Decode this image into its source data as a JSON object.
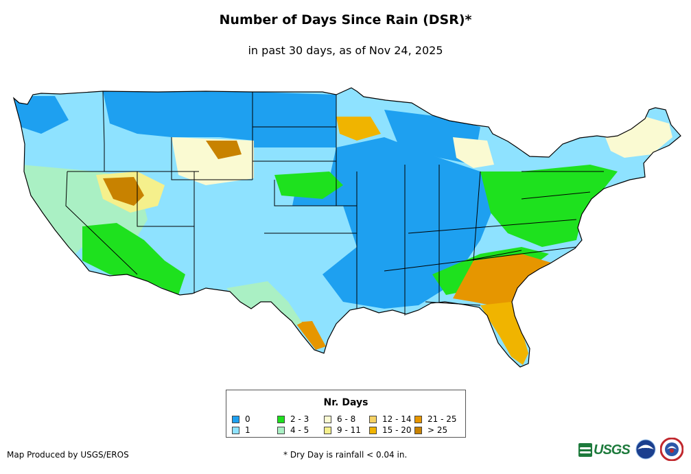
{
  "title": "Number of Days Since Rain (DSR)*",
  "subtitle": "in past 30 days, as of Nov 24, 2025",
  "legend": {
    "title": "Nr. Days",
    "items": [
      {
        "label": "0",
        "color": "#1ea0f0"
      },
      {
        "label": "1",
        "color": "#8ee2ff"
      },
      {
        "label": "2 - 3",
        "color": "#1ee11e"
      },
      {
        "label": "4 - 5",
        "color": "#aaf0c4"
      },
      {
        "label": "6 - 8",
        "color": "#fafad2"
      },
      {
        "label": "9 - 11",
        "color": "#f5f08c"
      },
      {
        "label": "12 - 14",
        "color": "#f5d264"
      },
      {
        "label": "15 - 20",
        "color": "#f0b400"
      },
      {
        "label": "21 - 25",
        "color": "#e69600"
      },
      {
        "label": "> 25",
        "color": "#c88200"
      }
    ]
  },
  "footer": {
    "credit": "Map Produced by USGS/EROS",
    "note": "* Dry Day is rainfall < 0.04 in."
  },
  "logos": {
    "usgs": "USGS",
    "noaa": "noaa",
    "nws_icon": "national-weather-service-logo"
  }
}
